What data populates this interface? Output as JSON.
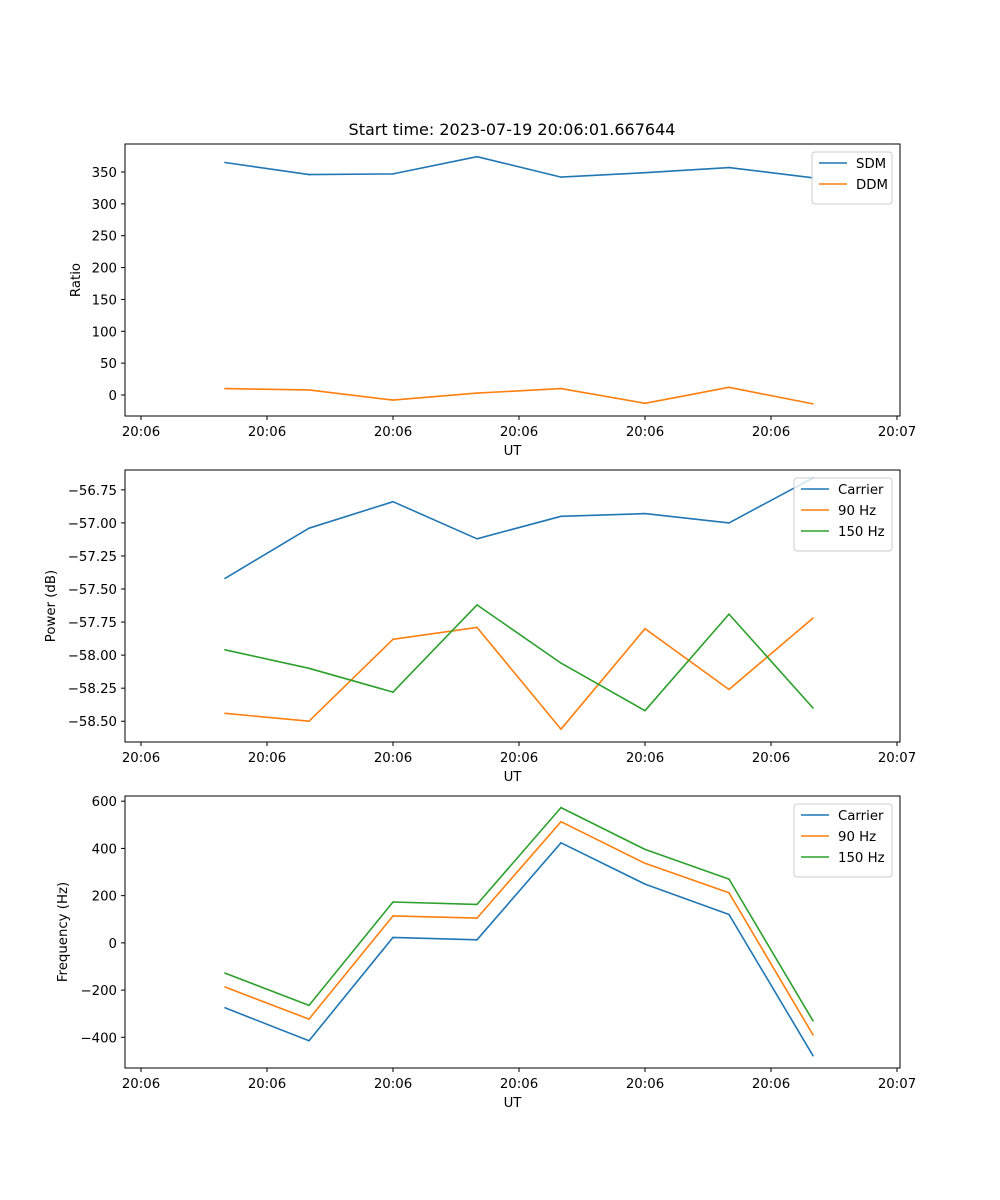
{
  "figure_title": "Start time: 2023-07-19 20:06:01.667644",
  "chart_data": [
    {
      "type": "line",
      "title": "Start time: 2023-07-19 20:06:01.667644",
      "xlabel": "UT",
      "ylabel": "Ratio",
      "x_index": [
        1,
        2,
        3,
        4,
        5,
        6,
        7,
        8
      ],
      "xlim": [
        0,
        9
      ],
      "x_ticks": [
        0,
        1.5,
        3,
        4.5,
        6,
        7.5,
        9
      ],
      "x_tick_labels": [
        "20:06",
        "20:06",
        "20:06",
        "20:06",
        "20:06",
        "20:06",
        "20:07"
      ],
      "ylim": [
        -33,
        394
      ],
      "y_ticks": [
        0,
        50,
        100,
        150,
        200,
        250,
        300,
        350
      ],
      "y_tick_labels": [
        "0",
        "50",
        "100",
        "150",
        "200",
        "250",
        "300",
        "350"
      ],
      "legend_position": "top-right",
      "series": [
        {
          "name": "SDM",
          "color": "#1f77b4",
          "values": [
            365,
            346,
            347,
            374,
            342,
            349,
            357,
            341
          ]
        },
        {
          "name": "DDM",
          "color": "#ff7f0e",
          "values": [
            10,
            8,
            -8,
            3,
            10,
            -13,
            12,
            -14
          ]
        }
      ]
    },
    {
      "type": "line",
      "title": "",
      "xlabel": "UT",
      "ylabel": "Power (dB)",
      "x_index": [
        1,
        2,
        3,
        4,
        5,
        6,
        7,
        8
      ],
      "xlim": [
        0,
        9
      ],
      "x_ticks": [
        0,
        1.5,
        3,
        4.5,
        6,
        7.5,
        9
      ],
      "x_tick_labels": [
        "20:06",
        "20:06",
        "20:06",
        "20:06",
        "20:06",
        "20:06",
        "20:07"
      ],
      "ylim": [
        -58.657,
        -56.6
      ],
      "y_ticks": [
        -58.5,
        -58.25,
        -58.0,
        -57.75,
        -57.5,
        -57.25,
        -57.0,
        -56.75
      ],
      "y_tick_labels": [
        "−58.50",
        "−58.25",
        "−58.00",
        "−57.75",
        "−57.50",
        "−57.25",
        "−57.00",
        "−56.75"
      ],
      "legend_position": "top-right",
      "series": [
        {
          "name": "Carrier",
          "color": "#1f77b4",
          "values": [
            -57.42,
            -57.04,
            -56.84,
            -57.12,
            -56.95,
            -56.93,
            -57.0,
            -56.66
          ]
        },
        {
          "name": "90 Hz",
          "color": "#ff7f0e",
          "values": [
            -58.44,
            -58.5,
            -57.88,
            -57.79,
            -58.56,
            -57.8,
            -58.26,
            -57.72
          ]
        },
        {
          "name": "150 Hz",
          "color": "#2ca02c",
          "values": [
            -57.96,
            -58.1,
            -58.28,
            -57.62,
            -58.06,
            -58.42,
            -57.69,
            -58.4
          ]
        }
      ]
    },
    {
      "type": "line",
      "title": "",
      "xlabel": "UT",
      "ylabel": "Frequency (Hz)",
      "x_index": [
        1,
        2,
        3,
        4,
        5,
        6,
        7,
        8
      ],
      "xlim": [
        0,
        9
      ],
      "x_ticks": [
        0,
        1.5,
        3,
        4.5,
        6,
        7.5,
        9
      ],
      "x_tick_labels": [
        "20:06",
        "20:06",
        "20:06",
        "20:06",
        "20:06",
        "20:06",
        "20:07"
      ],
      "ylim": [
        -530,
        622
      ],
      "y_ticks": [
        -400,
        -200,
        0,
        200,
        400,
        600
      ],
      "y_tick_labels": [
        "−400",
        "−200",
        "0",
        "200",
        "400",
        "600"
      ],
      "legend_position": "top-right",
      "series": [
        {
          "name": "Carrier",
          "color": "#1f77b4",
          "values": [
            -275,
            -415,
            23,
            13,
            424,
            249,
            120,
            -478
          ]
        },
        {
          "name": "90 Hz",
          "color": "#ff7f0e",
          "values": [
            -187,
            -323,
            114,
            105,
            513,
            337,
            212,
            -390
          ]
        },
        {
          "name": "150 Hz",
          "color": "#2ca02c",
          "values": [
            -128,
            -265,
            173,
            163,
            573,
            396,
            270,
            -330
          ]
        }
      ]
    }
  ]
}
